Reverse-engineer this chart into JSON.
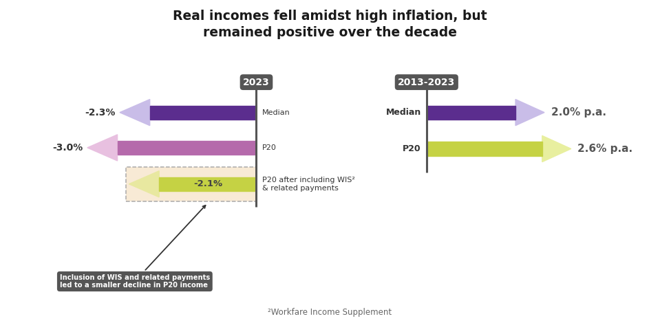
{
  "title_line1": "Real incomes fell amidst high inflation, but",
  "title_line2": "remained positive over the decade",
  "bg_color": "#ffffff",
  "left_label": "2023",
  "right_label": "2013-2023",
  "left_bars": [
    {
      "label": "Median",
      "value": 2.3,
      "color": "#5b2d8e",
      "arrow_color": "#c9bde8",
      "pct_text": "-2.3%"
    },
    {
      "label": "P20",
      "value": 3.0,
      "color": "#b56aab",
      "arrow_color": "#e8c0e0",
      "pct_text": "-3.0%"
    },
    {
      "label": "P20 after including WIS²\n& related payments",
      "value": 2.1,
      "color": "#c5d244",
      "arrow_color": "#e8e8a0",
      "pct_text": "-2.1%",
      "dashed_box": true
    }
  ],
  "right_bars": [
    {
      "label": "Median",
      "value": 2.0,
      "color": "#5b2d8e",
      "arrow_color": "#c9bde8",
      "pct_text": "2.0% p.a."
    },
    {
      "label": "P20",
      "value": 2.6,
      "color": "#c5d244",
      "arrow_color": "#e8ef9f",
      "pct_text": "2.6% p.a."
    }
  ],
  "annotation_text": "Inclusion of WIS and related payments\nled to a smaller decline in P20 income",
  "footnote": "²Workfare Income Supplement",
  "bar_height": 0.38
}
